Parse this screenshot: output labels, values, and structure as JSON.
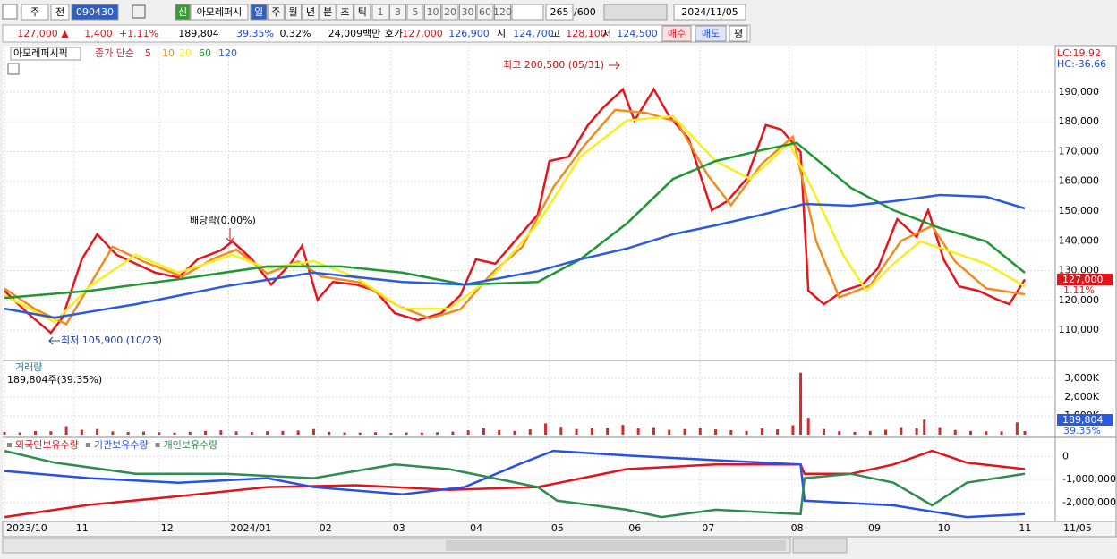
{
  "toolbar": {
    "market": "주",
    "prev": "전",
    "code": "090430",
    "badge": "신",
    "name": "아모레퍼시",
    "periods": [
      "일",
      "주",
      "월",
      "년",
      "분",
      "초",
      "틱"
    ],
    "intervals": [
      "1",
      "3",
      "5",
      "10",
      "20",
      "30",
      "60",
      "120"
    ],
    "count": "265",
    "max": "/600",
    "date": "2024/11/05"
  },
  "info_bar": {
    "price": "127,000 ▲",
    "change": "1,400",
    "rate": "+1.11%",
    "volume": "189,804",
    "volume_rate": "39.35%",
    "turnover": "0.32%",
    "amount": "24,009백만",
    "quote_label": "호가",
    "ask": "127,000",
    "bid": "126,900",
    "open_label": "시",
    "open": "124,700",
    "high_label": "고",
    "high": "128,100",
    "low_label": "저",
    "low": "124,500",
    "buy": "매수",
    "sell": "매도",
    "avg": "평"
  },
  "chart_data": [
    {
      "type": "line",
      "title": "아모레퍼시픽",
      "legend_prefix": "종가 단순",
      "grid": true,
      "xlim": [
        0,
        264
      ],
      "xticks": [
        {
          "value": 0,
          "label": "2023/10"
        },
        {
          "value": 18,
          "label": "11"
        },
        {
          "value": 40,
          "label": "12"
        },
        {
          "value": 58,
          "label": "2024/01"
        },
        {
          "value": 81,
          "label": "02"
        },
        {
          "value": 100,
          "label": "03"
        },
        {
          "value": 120,
          "label": "04"
        },
        {
          "value": 141,
          "label": "05"
        },
        {
          "value": 161,
          "label": "06"
        },
        {
          "value": 180,
          "label": "07"
        },
        {
          "value": 203,
          "label": "08"
        },
        {
          "value": 223,
          "label": "09"
        },
        {
          "value": 241,
          "label": "10"
        },
        {
          "value": 262,
          "label": "11"
        }
      ],
      "x_end_label": "11/05",
      "ylim": [
        99800,
        205300
      ],
      "yticks": [
        {
          "value": 110000,
          "label": "110,000"
        },
        {
          "value": 120000,
          "label": "120,000"
        },
        {
          "value": 130000,
          "label": "130,000"
        },
        {
          "value": 140000,
          "label": "140,000"
        },
        {
          "value": 150000,
          "label": "150,000"
        },
        {
          "value": 160000,
          "label": "160,000"
        },
        {
          "value": 170000,
          "label": "170,000"
        },
        {
          "value": 180000,
          "label": "180,000"
        },
        {
          "value": 190000,
          "label": "190,000"
        }
      ],
      "series": [
        {
          "name": "5",
          "color": "#e8141c",
          "x": [
            0,
            6,
            12,
            15,
            20,
            24,
            29,
            34,
            39,
            45,
            50,
            56,
            59,
            64,
            69,
            74,
            77,
            81,
            85,
            91,
            96,
            101,
            107,
            113,
            118,
            122,
            127,
            133,
            138,
            141,
            146,
            151,
            155,
            160,
            163,
            168,
            172,
            177,
            183,
            187,
            192,
            197,
            201,
            206,
            208,
            212,
            217,
            222,
            226,
            231,
            236,
            239,
            243,
            247,
            252,
            257,
            260,
            264
          ],
          "values": [
            123200,
            115700,
            109100,
            114200,
            133800,
            142200,
            135300,
            132300,
            129300,
            127700,
            133800,
            136800,
            139800,
            133800,
            125300,
            132300,
            138300,
            120200,
            126200,
            125300,
            123200,
            115700,
            113300,
            115700,
            121700,
            133800,
            132300,
            141300,
            148800,
            166800,
            168300,
            178900,
            184900,
            190900,
            180400,
            190900,
            181900,
            174400,
            150300,
            153300,
            160800,
            178900,
            177400,
            169800,
            123200,
            118700,
            123200,
            125300,
            130800,
            147300,
            141300,
            150300,
            133800,
            124700,
            123200,
            120200,
            118700,
            127000
          ]
        },
        {
          "name": "10",
          "color": "#f08c1e",
          "x": [
            0,
            8,
            16,
            22,
            28,
            36,
            46,
            54,
            60,
            68,
            76,
            82,
            92,
            102,
            110,
            118,
            126,
            134,
            142,
            150,
            158,
            166,
            174,
            182,
            188,
            196,
            204,
            210,
            216,
            224,
            232,
            240,
            246,
            254,
            264
          ],
          "values": [
            124000,
            117000,
            112000,
            125000,
            138000,
            133000,
            128000,
            134000,
            137000,
            129000,
            133000,
            128000,
            126000,
            118000,
            114000,
            117000,
            129000,
            138000,
            158000,
            172000,
            184000,
            183000,
            180000,
            162000,
            152000,
            166000,
            175000,
            140000,
            121000,
            125000,
            140000,
            145000,
            133000,
            124000,
            122000
          ]
        },
        {
          "name": "20",
          "color": "#f5f01e",
          "x": [
            0,
            13,
            22,
            34,
            45,
            59,
            68,
            80,
            91,
            103,
            115,
            126,
            138,
            149,
            161,
            173,
            184,
            193,
            203,
            210,
            217,
            223,
            230,
            237,
            244,
            254,
            264
          ],
          "values": [
            121700,
            112700,
            124700,
            135300,
            129300,
            135300,
            130800,
            133200,
            127700,
            117200,
            117200,
            127700,
            145800,
            168300,
            180400,
            181900,
            166800,
            160800,
            172900,
            154800,
            135300,
            123200,
            132300,
            139800,
            136800,
            132300,
            124700
          ]
        },
        {
          "name": "60",
          "color": "#1e9632",
          "x": [
            0,
            22,
            45,
            68,
            87,
            103,
            119,
            138,
            149,
            161,
            173,
            184,
            196,
            205,
            219,
            230,
            242,
            254,
            264
          ],
          "values": [
            120800,
            123200,
            127100,
            131400,
            131400,
            129300,
            125300,
            126200,
            133800,
            145800,
            160800,
            166800,
            170500,
            172900,
            157800,
            150300,
            144300,
            139800,
            129300
          ]
        },
        {
          "name": "120",
          "color": "#2a5ae0",
          "x": [
            0,
            13,
            34,
            57,
            80,
            103,
            119,
            138,
            149,
            161,
            173,
            184,
            196,
            207,
            219,
            230,
            242,
            254,
            264
          ],
          "values": [
            117200,
            114200,
            118700,
            124700,
            129300,
            126200,
            125300,
            129800,
            133800,
            137400,
            142200,
            145200,
            148800,
            152400,
            151800,
            153300,
            155400,
            154800,
            150900
          ]
        }
      ],
      "annotations": {
        "high": "최고 200,500 (05/31)",
        "low": "최저 105,900 (10/23)",
        "dividend": "배당락(0.00%)"
      },
      "lc_label": "LC:19.92",
      "hc_label": "HC:-36.66",
      "last_price_label": "127,000",
      "change_label": "1.11%"
    },
    {
      "type": "bar",
      "title": "거래량",
      "subtitle": "189,804주(39.35%)",
      "color": "#d42a2a",
      "xlim": [
        0,
        264
      ],
      "ylim": [
        0,
        3857000
      ],
      "yticks": [
        {
          "value": 1000000,
          "label": "1,000K"
        },
        {
          "value": 2000000,
          "label": "2,000K"
        },
        {
          "value": 3000000,
          "label": "3,000K"
        }
      ],
      "x": [
        0,
        4,
        8,
        12,
        16,
        20,
        24,
        28,
        32,
        36,
        40,
        44,
        48,
        52,
        56,
        60,
        64,
        68,
        72,
        76,
        80,
        84,
        88,
        92,
        96,
        100,
        104,
        108,
        112,
        116,
        120,
        124,
        128,
        132,
        136,
        140,
        144,
        148,
        152,
        156,
        160,
        164,
        168,
        172,
        176,
        180,
        184,
        188,
        192,
        196,
        200,
        204,
        206,
        208,
        212,
        216,
        220,
        224,
        228,
        232,
        236,
        238,
        242,
        246,
        250,
        254,
        258,
        262,
        264
      ],
      "values": [
        150000,
        120000,
        200000,
        180000,
        450000,
        260000,
        300000,
        170000,
        140000,
        160000,
        130000,
        110000,
        150000,
        200000,
        230000,
        170000,
        140000,
        180000,
        200000,
        220000,
        300000,
        150000,
        120000,
        110000,
        130000,
        100000,
        120000,
        110000,
        130000,
        160000,
        230000,
        350000,
        250000,
        200000,
        280000,
        600000,
        420000,
        300000,
        350000,
        380000,
        520000,
        330000,
        400000,
        260000,
        300000,
        350000,
        280000,
        240000,
        200000,
        330000,
        280000,
        500000,
        3300000,
        900000,
        300000,
        180000,
        150000,
        200000,
        260000,
        400000,
        350000,
        800000,
        400000,
        250000,
        200000,
        180000,
        170000,
        650000,
        189804
      ],
      "last_volume_label": "189,804",
      "last_rate_label": "39.35%"
    },
    {
      "type": "line",
      "xlim": [
        0,
        264
      ],
      "ylim": [
        -2820000,
        750000
      ],
      "yticks": [
        0,
        {
          "value": -1000000,
          "label": "-1,000,000"
        },
        {
          "value": -2000000,
          "label": "-2,000,000"
        }
      ],
      "series": [
        {
          "name": "외국인보유수량",
          "color": "#e0141c",
          "x": [
            0,
            22,
            45,
            68,
            91,
            115,
            138,
            161,
            184,
            206,
            207,
            219,
            230,
            240,
            249,
            264
          ],
          "values": [
            -2630000,
            -2100000,
            -1730000,
            -1330000,
            -1250000,
            -1450000,
            -1330000,
            -550000,
            -350000,
            -350000,
            -750000,
            -750000,
            -350000,
            240000,
            -270000,
            -550000
          ]
        },
        {
          "name": "기관보유수량",
          "color": "#2850e6",
          "x": [
            0,
            22,
            45,
            68,
            80,
            103,
            119,
            133,
            142,
            161,
            184,
            206,
            207,
            230,
            249,
            264
          ],
          "values": [
            -630000,
            -940000,
            -1140000,
            -940000,
            -1330000,
            -1650000,
            -1330000,
            -350000,
            240000,
            40000,
            -160000,
            -350000,
            -1920000,
            -2120000,
            -2630000,
            -2500000
          ]
        },
        {
          "name": "개인보유수량",
          "color": "#2e8c50",
          "x": [
            0,
            13,
            34,
            57,
            80,
            101,
            115,
            138,
            143,
            161,
            170,
            184,
            206,
            207,
            219,
            230,
            240,
            249,
            264
          ],
          "values": [
            240000,
            -270000,
            -750000,
            -750000,
            -940000,
            -350000,
            -550000,
            -1330000,
            -1920000,
            -2310000,
            -2630000,
            -2310000,
            -2500000,
            -940000,
            -750000,
            -1140000,
            -2120000,
            -1140000,
            -750000
          ]
        }
      ]
    }
  ]
}
